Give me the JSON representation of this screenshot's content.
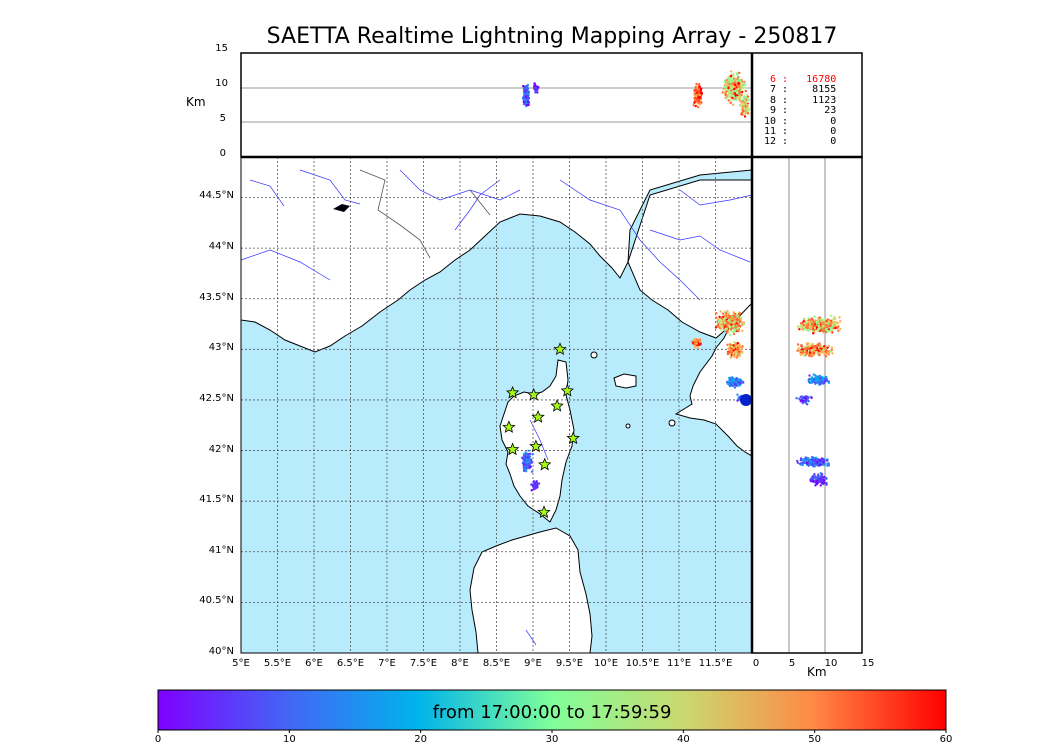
{
  "title": "SAETTA Realtime Lightning Mapping Array - 250817",
  "top_panel": {
    "ylabel": "Km",
    "ticks": [
      "15",
      "10",
      "5",
      "0"
    ]
  },
  "right_panel": {
    "xlabel": "Km",
    "ticks": [
      "0",
      "5",
      "10",
      "15"
    ]
  },
  "map": {
    "lat_ticks": [
      "44.5°N",
      "44°N",
      "43.5°N",
      "43°N",
      "42.5°N",
      "42°N",
      "41.5°N",
      "41°N",
      "40.5°N",
      "40°N"
    ],
    "lon_ticks": [
      "5°E",
      "5.5°E",
      "6°E",
      "6.5°E",
      "7°E",
      "7.5°E",
      "8°E",
      "8.5°E",
      "9°E",
      "9.5°E",
      "10°E",
      "10.5°E",
      "11°E",
      "11.5°E"
    ],
    "lon_range": [
      5,
      12
    ],
    "lat_range": [
      40,
      44.9
    ],
    "sea_color": "#b8ecfc",
    "stations": [
      {
        "lon": 9.37,
        "lat": 43.0
      },
      {
        "lon": 8.72,
        "lat": 42.57
      },
      {
        "lon": 9.01,
        "lat": 42.55
      },
      {
        "lon": 9.47,
        "lat": 42.59
      },
      {
        "lon": 9.33,
        "lat": 42.44
      },
      {
        "lon": 9.07,
        "lat": 42.33
      },
      {
        "lon": 8.67,
        "lat": 42.23
      },
      {
        "lon": 9.55,
        "lat": 42.12
      },
      {
        "lon": 8.72,
        "lat": 42.01
      },
      {
        "lon": 9.04,
        "lat": 42.04
      },
      {
        "lon": 9.16,
        "lat": 41.86
      },
      {
        "lon": 9.15,
        "lat": 41.39
      }
    ]
  },
  "stats": [
    {
      "label": " 6 :",
      "value": "16780",
      "color": "#ff0000"
    },
    {
      "label": " 7 :",
      "value": " 8155",
      "color": "#000000"
    },
    {
      "label": " 8 :",
      "value": " 1123",
      "color": "#000000"
    },
    {
      "label": " 9 :",
      "value": "   23",
      "color": "#000000"
    },
    {
      "label": "10 :",
      "value": "    0",
      "color": "#000000"
    },
    {
      "label": "11 :",
      "value": "    0",
      "color": "#000000"
    },
    {
      "label": "12 :",
      "value": "    0",
      "color": "#000000"
    }
  ],
  "colorbar": {
    "label": "from 17:00:00 to 17:59:59",
    "ticks": [
      "0",
      "10",
      "20",
      "30",
      "40",
      "50",
      "60"
    ],
    "range": [
      0,
      60
    ]
  }
}
